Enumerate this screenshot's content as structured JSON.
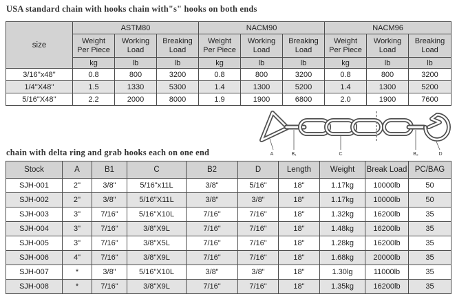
{
  "titles": {
    "top": "USA standard chain with hooks chain with\"s\" hooks on both ends",
    "bottom": "chain with delta ring and grab hooks each on one end"
  },
  "spec_table": {
    "size_header": "size",
    "groups": [
      "ASTM80",
      "NACM90",
      "NACM96"
    ],
    "sub_headers": [
      "Weight\nPer Piece",
      "Working\nLoad",
      "Breaking\nLoad"
    ],
    "units": [
      "kg",
      "lb",
      "lb"
    ],
    "rows": [
      {
        "size": "3/16''x48''",
        "values": [
          "0.8",
          "800",
          "3200",
          "0.8",
          "800",
          "3200",
          "0.8",
          "800",
          "3200"
        ]
      },
      {
        "size": "1/4''X48''",
        "values": [
          "1.5",
          "1330",
          "5300",
          "1.4",
          "1300",
          "5200",
          "1.4",
          "1300",
          "5200"
        ]
      },
      {
        "size": "5/16''X48''",
        "values": [
          "2.2",
          "2000",
          "8000",
          "1.9",
          "1900",
          "6800",
          "2.0",
          "1900",
          "7600"
        ]
      }
    ]
  },
  "diagram": {
    "labels": [
      "A",
      "B₁",
      "C",
      "B₂",
      "D"
    ]
  },
  "stock_table": {
    "headers": [
      "Stock",
      "A",
      "B1",
      "C",
      "B2",
      "D",
      "Length",
      "Weight",
      "Break Load",
      "PC/BAG"
    ],
    "rows": [
      [
        "SJH-001",
        "2''",
        "3/8\"",
        "5/16\"x11L",
        "3/8\"",
        "5/16\"",
        "18\"",
        "1.17kg",
        "10000lb",
        "50"
      ],
      [
        "SJH-002",
        "2''",
        "3/8\"",
        "5/16''X11L",
        "3/8\"",
        "3/8\"",
        "18\"",
        "1.17kg",
        "10000lb",
        "50"
      ],
      [
        "SJH-003",
        "3\"",
        "7/16\"",
        "5/16''X10L",
        "7/16\"",
        "7/16\"",
        "18\"",
        "1.32kg",
        "16200lb",
        "35"
      ],
      [
        "SJH-004",
        "3\"",
        "7/16\"",
        "3/8\"X9L",
        "7/16\"",
        "7/16\"",
        "18\"",
        "1.48kg",
        "16200lb",
        "35"
      ],
      [
        "SJH-005",
        "3\"",
        "7/16\"",
        "3/8\"X5L",
        "7/16\"",
        "7/16\"",
        "18\"",
        "1.28kg",
        "16200lb",
        "35"
      ],
      [
        "SJH-006",
        "4\"",
        "7/16\"",
        "3/8\"X9L",
        "7/16\"",
        "7/16\"",
        "18\"",
        "1.68kg",
        "20000lb",
        "35"
      ],
      [
        "SJH-007",
        "*",
        "3/8\"",
        "5/16\"X10L",
        "3/8\"",
        "3/8\"",
        "18\"",
        "1.30lg",
        "11000lb",
        "35"
      ],
      [
        "SJH-008",
        "*",
        "7/16\"",
        "3/8\"X9L",
        "7/16\"",
        "7/16\"",
        "18\"",
        "1.35kg",
        "16200lb",
        "35"
      ]
    ]
  },
  "colors": {
    "header_bg": "#d3d3d3",
    "alt_row_bg": "#e3e3e3",
    "border": "#4d4d4d",
    "text": "#222222"
  }
}
